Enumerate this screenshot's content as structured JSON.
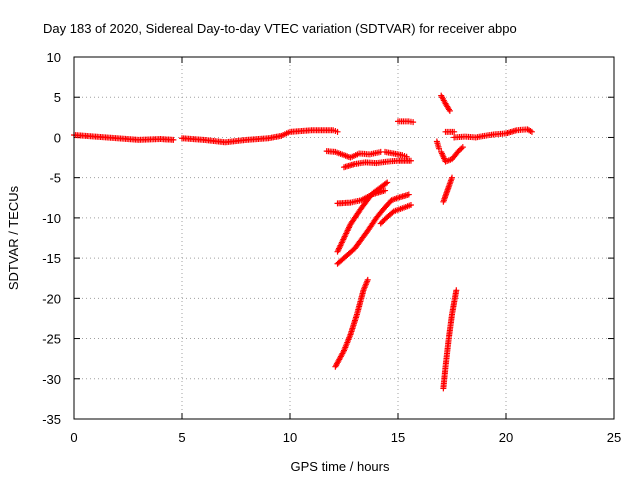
{
  "chart_data": {
    "type": "scatter",
    "title": "Day 183 of 2020, Sidereal Day-to-day VTEC variation (SDTVAR) for receiver abpo",
    "xlabel": "GPS time / hours",
    "ylabel": "SDTVAR / TECUs",
    "xlim": [
      0,
      25
    ],
    "ylim": [
      -35,
      10
    ],
    "x_ticks": [
      0,
      5,
      10,
      15,
      20,
      25
    ],
    "y_ticks": [
      10,
      5,
      0,
      -5,
      -10,
      -15,
      -20,
      -25,
      -30,
      -35
    ],
    "grid": true,
    "legend": "none",
    "marker": "+",
    "color": "#ff0000",
    "series": [
      {
        "segments": [
          [
            [
              0.0,
              0.3
            ],
            [
              1.0,
              0.1
            ],
            [
              2.0,
              -0.1
            ],
            [
              3.0,
              -0.3
            ],
            [
              4.0,
              -0.2
            ],
            [
              4.6,
              -0.3
            ]
          ],
          [
            [
              5.0,
              -0.1
            ],
            [
              6.0,
              -0.3
            ],
            [
              7.0,
              -0.6
            ],
            [
              8.0,
              -0.3
            ],
            [
              9.0,
              -0.1
            ],
            [
              9.6,
              0.2
            ],
            [
              10.0,
              0.7
            ],
            [
              11.0,
              0.9
            ],
            [
              12.0,
              0.9
            ],
            [
              12.2,
              0.7
            ]
          ],
          [
            [
              11.7,
              -1.7
            ],
            [
              12.1,
              -1.8
            ],
            [
              12.5,
              -2.2
            ],
            [
              12.8,
              -2.5
            ],
            [
              13.2,
              -2.0
            ],
            [
              13.7,
              -2.1
            ],
            [
              14.2,
              -1.8
            ]
          ],
          [
            [
              12.5,
              -3.7
            ],
            [
              13.0,
              -3.3
            ],
            [
              13.5,
              -3.1
            ],
            [
              14.0,
              -3.2
            ],
            [
              14.5,
              -3.0
            ],
            [
              15.0,
              -2.9
            ],
            [
              15.6,
              -2.9
            ]
          ],
          [
            [
              14.4,
              -1.8
            ],
            [
              14.8,
              -2.0
            ],
            [
              15.2,
              -2.2
            ],
            [
              15.4,
              -2.4
            ]
          ],
          [
            [
              15.0,
              2.0
            ],
            [
              15.5,
              2.0
            ],
            [
              15.7,
              1.9
            ]
          ],
          [
            [
              12.2,
              -8.2
            ],
            [
              12.8,
              -8.1
            ],
            [
              13.3,
              -7.8
            ],
            [
              13.8,
              -7.1
            ],
            [
              14.4,
              -6.6
            ]
          ],
          [
            [
              12.2,
              -15.7
            ],
            [
              13.0,
              -13.8
            ],
            [
              13.6,
              -11.6
            ],
            [
              14.0,
              -10.0
            ],
            [
              14.3,
              -9.0
            ],
            [
              14.7,
              -7.8
            ],
            [
              15.0,
              -7.5
            ],
            [
              15.5,
              -7.1
            ]
          ],
          [
            [
              12.2,
              -14.2
            ],
            [
              12.8,
              -10.8
            ],
            [
              13.3,
              -8.8
            ],
            [
              13.8,
              -7.0
            ],
            [
              14.2,
              -6.2
            ],
            [
              14.5,
              -5.6
            ]
          ],
          [
            [
              14.2,
              -10.7
            ],
            [
              14.5,
              -9.9
            ],
            [
              14.8,
              -9.2
            ],
            [
              15.2,
              -8.8
            ],
            [
              15.6,
              -8.4
            ]
          ],
          [
            [
              12.1,
              -28.5
            ],
            [
              12.5,
              -26.5
            ],
            [
              12.8,
              -24.5
            ],
            [
              13.1,
              -22.0
            ],
            [
              13.4,
              -19.0
            ],
            [
              13.6,
              -17.7
            ]
          ],
          [
            [
              16.8,
              -0.5
            ],
            [
              16.9,
              -1.4
            ]
          ],
          [
            [
              17.0,
              5.2
            ],
            [
              17.2,
              4.2
            ],
            [
              17.4,
              3.3
            ]
          ],
          [
            [
              17.2,
              0.7
            ],
            [
              17.6,
              0.7
            ]
          ],
          [
            [
              17.0,
              -1.8
            ],
            [
              17.2,
              -3.0
            ],
            [
              17.5,
              -2.7
            ],
            [
              17.8,
              -1.7
            ],
            [
              18.0,
              -1.2
            ]
          ],
          [
            [
              17.1,
              -8.0
            ],
            [
              17.3,
              -6.5
            ],
            [
              17.5,
              -5.0
            ]
          ],
          [
            [
              17.1,
              -31.2
            ],
            [
              17.2,
              -28.5
            ],
            [
              17.35,
              -25.0
            ],
            [
              17.5,
              -22.0
            ],
            [
              17.7,
              -19.0
            ]
          ],
          [
            [
              17.6,
              0.0
            ],
            [
              18.1,
              0.1
            ],
            [
              18.6,
              0.0
            ],
            [
              19.0,
              0.2
            ],
            [
              19.5,
              0.4
            ],
            [
              20.0,
              0.5
            ],
            [
              20.5,
              0.9
            ],
            [
              21.0,
              1.0
            ],
            [
              21.2,
              0.7
            ]
          ]
        ]
      }
    ]
  }
}
